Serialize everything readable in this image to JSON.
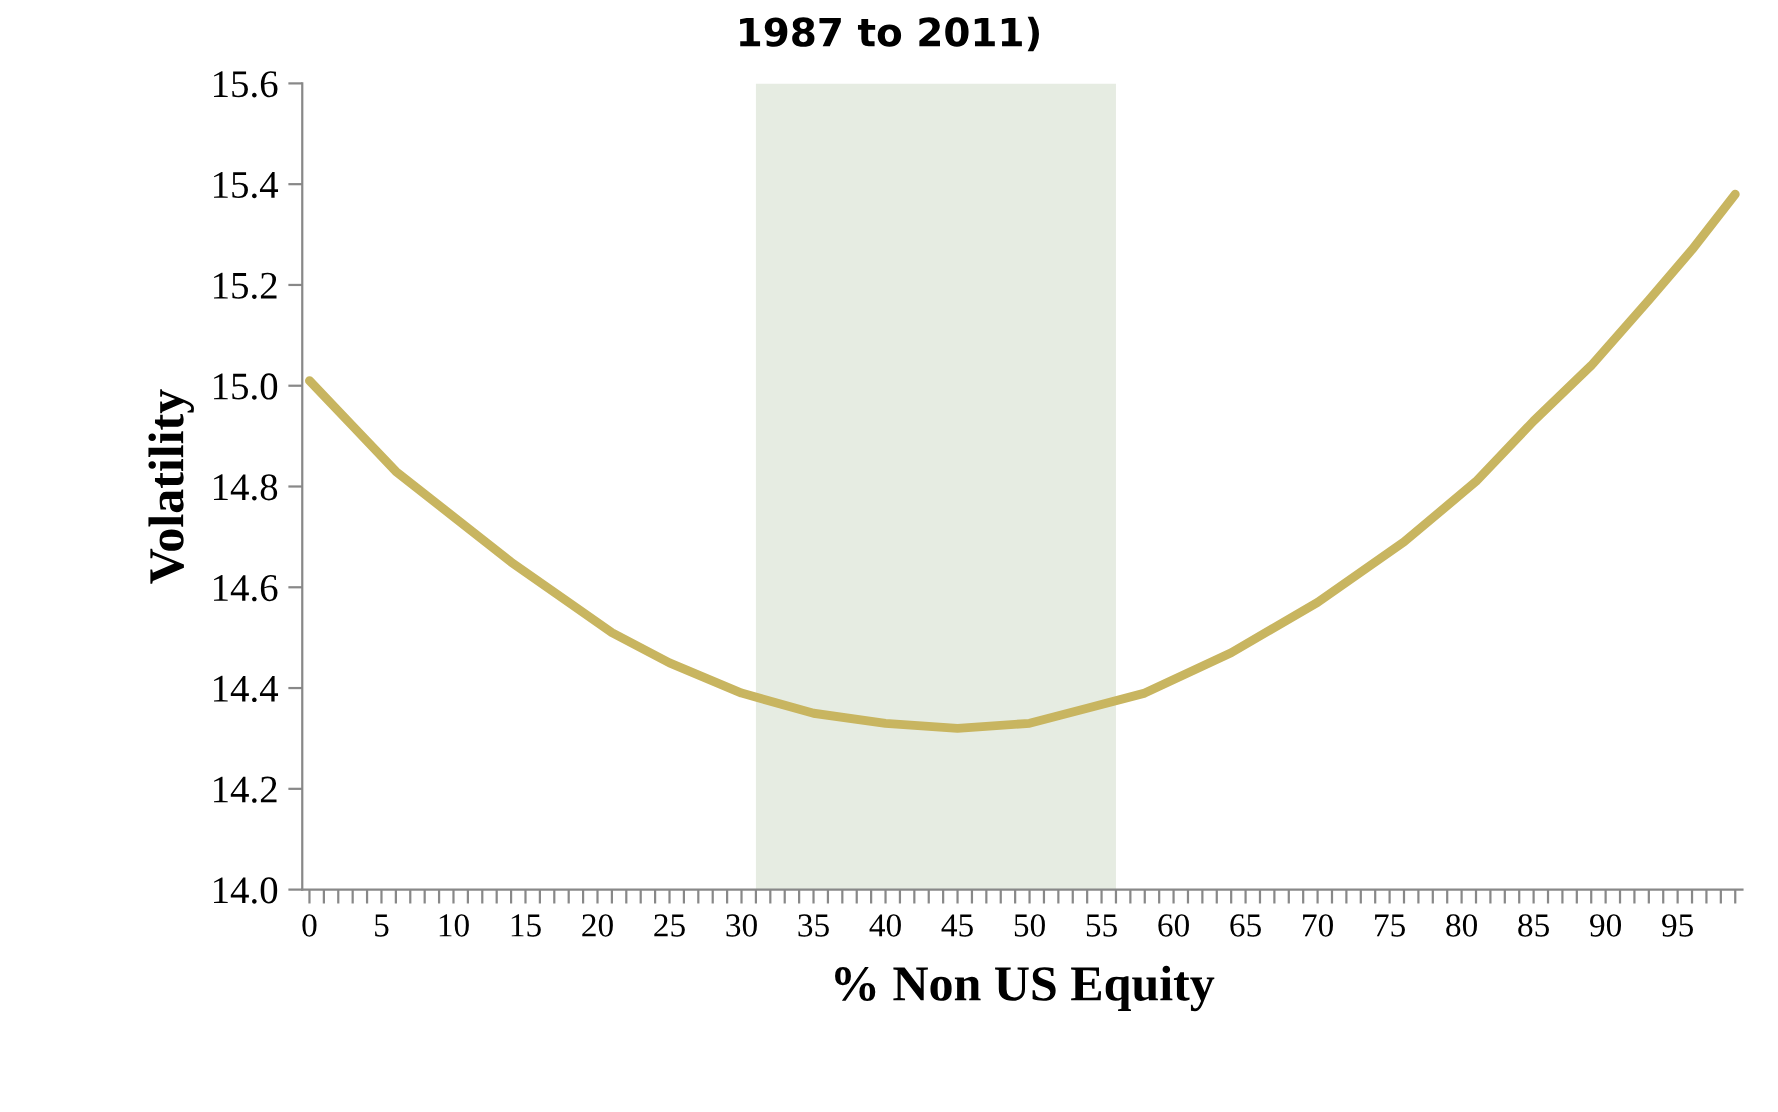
{
  "chart_data": {
    "type": "line",
    "title": "1987 to 2011)",
    "xlabel": "% Non US Equity",
    "ylabel": "Volatility",
    "series": [
      {
        "color": "#c8b560",
        "x": [
          0,
          3,
          6,
          10,
          14,
          18,
          21,
          25,
          30,
          35,
          40,
          45,
          50,
          54,
          58,
          64,
          70,
          76,
          81,
          85,
          89,
          93,
          96,
          99
        ],
        "values": [
          15.01,
          14.92,
          14.83,
          14.74,
          14.65,
          14.57,
          14.51,
          14.45,
          14.39,
          14.35,
          14.33,
          14.32,
          14.33,
          14.36,
          14.39,
          14.47,
          14.57,
          14.69,
          14.81,
          14.93,
          15.04,
          15.17,
          15.27,
          15.38
        ]
      }
    ],
    "xlim": [
      -0.5,
      99.5
    ],
    "ylim": [
      14.0,
      15.6
    ],
    "xticks": [
      0,
      {
        "value": 1,
        "label": null
      },
      {
        "value": 2,
        "label": null
      },
      {
        "value": 3,
        "label": null
      },
      {
        "value": 4,
        "label": null
      },
      5,
      {
        "value": 6,
        "label": null
      },
      {
        "value": 7,
        "label": null
      },
      {
        "value": 8,
        "label": null
      },
      {
        "value": 9,
        "label": null
      },
      10,
      {
        "value": 11,
        "label": null
      },
      {
        "value": 12,
        "label": null
      },
      {
        "value": 13,
        "label": null
      },
      {
        "value": 14,
        "label": null
      },
      15,
      {
        "value": 16,
        "label": null
      },
      {
        "value": 17,
        "label": null
      },
      {
        "value": 18,
        "label": null
      },
      {
        "value": 19,
        "label": null
      },
      20,
      {
        "value": 21,
        "label": null
      },
      {
        "value": 22,
        "label": null
      },
      {
        "value": 23,
        "label": null
      },
      {
        "value": 24,
        "label": null
      },
      25,
      {
        "value": 26,
        "label": null
      },
      {
        "value": 27,
        "label": null
      },
      {
        "value": 28,
        "label": null
      },
      {
        "value": 29,
        "label": null
      },
      30,
      {
        "value": 31,
        "label": null
      },
      {
        "value": 32,
        "label": null
      },
      {
        "value": 33,
        "label": null
      },
      {
        "value": 34,
        "label": null
      },
      35,
      {
        "value": 36,
        "label": null
      },
      {
        "value": 37,
        "label": null
      },
      {
        "value": 38,
        "label": null
      },
      {
        "value": 39,
        "label": null
      },
      40,
      {
        "value": 41,
        "label": null
      },
      {
        "value": 42,
        "label": null
      },
      {
        "value": 43,
        "label": null
      },
      {
        "value": 44,
        "label": null
      },
      45,
      {
        "value": 46,
        "label": null
      },
      {
        "value": 47,
        "label": null
      },
      {
        "value": 48,
        "label": null
      },
      {
        "value": 49,
        "label": null
      },
      50,
      {
        "value": 51,
        "label": null
      },
      {
        "value": 52,
        "label": null
      },
      {
        "value": 53,
        "label": null
      },
      {
        "value": 54,
        "label": null
      },
      55,
      {
        "value": 56,
        "label": null
      },
      {
        "value": 57,
        "label": null
      },
      {
        "value": 58,
        "label": null
      },
      {
        "value": 59,
        "label": null
      },
      60,
      {
        "value": 61,
        "label": null
      },
      {
        "value": 62,
        "label": null
      },
      {
        "value": 63,
        "label": null
      },
      {
        "value": 64,
        "label": null
      },
      65,
      {
        "value": 66,
        "label": null
      },
      {
        "value": 67,
        "label": null
      },
      {
        "value": 68,
        "label": null
      },
      {
        "value": 69,
        "label": null
      },
      70,
      {
        "value": 71,
        "label": null
      },
      {
        "value": 72,
        "label": null
      },
      {
        "value": 73,
        "label": null
      },
      {
        "value": 74,
        "label": null
      },
      75,
      {
        "value": 76,
        "label": null
      },
      {
        "value": 77,
        "label": null
      },
      {
        "value": 78,
        "label": null
      },
      {
        "value": 79,
        "label": null
      },
      80,
      {
        "value": 81,
        "label": null
      },
      {
        "value": 82,
        "label": null
      },
      {
        "value": 83,
        "label": null
      },
      {
        "value": 84,
        "label": null
      },
      85,
      {
        "value": 86,
        "label": null
      },
      {
        "value": 87,
        "label": null
      },
      {
        "value": 88,
        "label": null
      },
      {
        "value": 89,
        "label": null
      },
      90,
      {
        "value": 91,
        "label": null
      },
      {
        "value": 92,
        "label": null
      },
      {
        "value": 93,
        "label": null
      },
      {
        "value": 94,
        "label": null
      },
      95,
      {
        "value": 96,
        "label": null
      },
      {
        "value": 97,
        "label": null
      },
      {
        "value": 98,
        "label": null
      },
      {
        "value": 99,
        "label": null
      }
    ],
    "yticks": [
      {
        "value": 14,
        "label": "14.0"
      },
      14.2,
      14.4,
      14.6,
      14.8,
      {
        "value": 15,
        "label": "15.0"
      },
      15.2,
      15.4,
      15.6
    ],
    "bands": [
      {
        "axis": "x",
        "from": 31,
        "to": 56,
        "color": "#e6ece2"
      }
    ],
    "grid": false,
    "marker": "none",
    "line_style": "solid"
  }
}
